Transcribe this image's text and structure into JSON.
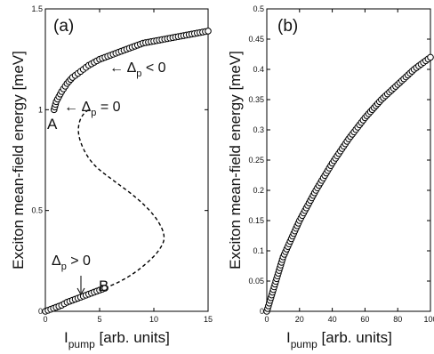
{
  "chart_data": [
    {
      "panel": "(a)",
      "type": "scatter",
      "xlabel": "I_pump [arb. units]",
      "ylabel": "Exciton mean-field energy [meV]",
      "xlim": [
        0,
        15
      ],
      "ylim": [
        0,
        1.5
      ],
      "xticks": [
        "0",
        "5",
        "10",
        "15"
      ],
      "yticks": [
        "0",
        "0.5",
        "1",
        "1.5"
      ],
      "series": [
        {
          "marker": "open circle",
          "x": [
            0.0,
            0.5,
            1.0,
            1.5,
            2.0,
            2.5,
            3.0,
            3.5,
            4.0,
            4.5,
            5.0,
            5.5
          ],
          "y": [
            0.0,
            0.01,
            0.02,
            0.03,
            0.045,
            0.055,
            0.065,
            0.075,
            0.085,
            0.095,
            0.105,
            0.115
          ]
        },
        {
          "marker": "dashed line",
          "x": [
            5.5,
            7.0,
            8.5,
            10.0,
            10.7,
            11.0,
            10.8,
            10.0,
            8.5,
            6.5,
            4.5,
            3.5,
            3.0,
            3.1,
            3.5,
            4.0
          ],
          "y": [
            0.115,
            0.15,
            0.2,
            0.27,
            0.32,
            0.36,
            0.41,
            0.48,
            0.56,
            0.64,
            0.72,
            0.8,
            0.88,
            0.94,
            0.98,
            1.0
          ]
        },
        {
          "marker": "open circle",
          "x": [
            0.8,
            1.0,
            1.5,
            2.0,
            2.5,
            3.0,
            3.5,
            4.0,
            5.0,
            6.0,
            7.0,
            8.0,
            9.0,
            10.0,
            11.0,
            12.0,
            13.0,
            14.0,
            15.0
          ],
          "y": [
            1.0,
            1.04,
            1.09,
            1.13,
            1.16,
            1.18,
            1.2,
            1.22,
            1.25,
            1.27,
            1.29,
            1.31,
            1.33,
            1.34,
            1.35,
            1.36,
            1.37,
            1.38,
            1.39
          ]
        }
      ],
      "annotations": {
        "delta_neg": "← Δp < 0",
        "delta_zero": "← Δp = 0",
        "delta_pos": "Δp > 0",
        "point_a": "A",
        "point_b": "B"
      }
    },
    {
      "panel": "(b)",
      "type": "scatter",
      "xlabel": "I_pump [arb. units]",
      "ylabel": "Exciton mean-field energy [meV]",
      "xlim": [
        0,
        100
      ],
      "ylim": [
        0,
        0.5
      ],
      "xticks": [
        "0",
        "20",
        "40",
        "60",
        "80",
        "100"
      ],
      "yticks": [
        "0",
        "0.05",
        "0.1",
        "0.15",
        "0.2",
        "0.25",
        "0.3",
        "0.35",
        "0.4",
        "0.45",
        "0.5"
      ],
      "series": [
        {
          "marker": "open circle",
          "x": [
            0,
            10,
            20,
            30,
            40,
            50,
            60,
            70,
            80,
            90,
            100
          ],
          "y": [
            0.0,
            0.09,
            0.15,
            0.2,
            0.245,
            0.285,
            0.32,
            0.35,
            0.375,
            0.4,
            0.42
          ]
        }
      ]
    }
  ]
}
